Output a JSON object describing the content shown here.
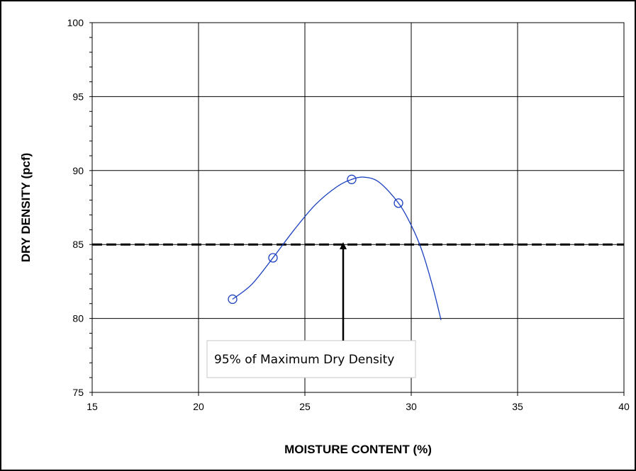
{
  "chart_data": {
    "type": "scatter",
    "title": "",
    "xlabel": "MOISTURE CONTENT (%)",
    "ylabel": "DRY DENSITY (pcf)",
    "xlim": [
      15,
      40
    ],
    "ylim": [
      75,
      100
    ],
    "xticks": [
      15,
      20,
      25,
      30,
      35,
      40
    ],
    "yticks": [
      75,
      80,
      85,
      90,
      95,
      100
    ],
    "grid": true,
    "series": [
      {
        "kind": "points",
        "marker": "open-circle",
        "color": "#1a3fbf",
        "points": [
          {
            "x": 21.6,
            "y": 81.3
          },
          {
            "x": 23.5,
            "y": 84.1
          },
          {
            "x": 27.2,
            "y": 89.4
          },
          {
            "x": 29.4,
            "y": 87.8
          }
        ]
      },
      {
        "kind": "fitted-curve",
        "color": "#1a3fbf",
        "points": [
          {
            "x": 21.6,
            "y": 81.3
          },
          {
            "x": 22.5,
            "y": 82.3
          },
          {
            "x": 23.5,
            "y": 84.1
          },
          {
            "x": 24.5,
            "y": 86.0
          },
          {
            "x": 25.5,
            "y": 87.7
          },
          {
            "x": 26.5,
            "y": 88.9
          },
          {
            "x": 27.2,
            "y": 89.4
          },
          {
            "x": 27.8,
            "y": 89.55
          },
          {
            "x": 28.5,
            "y": 89.2
          },
          {
            "x": 29.4,
            "y": 87.8
          },
          {
            "x": 30.0,
            "y": 86.3
          },
          {
            "x": 30.5,
            "y": 84.6
          },
          {
            "x": 31.0,
            "y": 82.2
          },
          {
            "x": 31.4,
            "y": 79.9
          }
        ]
      }
    ],
    "reference_line": {
      "y": 85,
      "style": "dashed",
      "color": "#000000"
    },
    "annotation": {
      "text": "95% of Maximum Dry Density",
      "arrow_x": 26.8,
      "arrow_y_head": 85.3,
      "arrow_y_tail": 78.5,
      "box_x": [
        20.4,
        30.2
      ],
      "box_y": [
        76.0,
        78.5
      ]
    }
  }
}
